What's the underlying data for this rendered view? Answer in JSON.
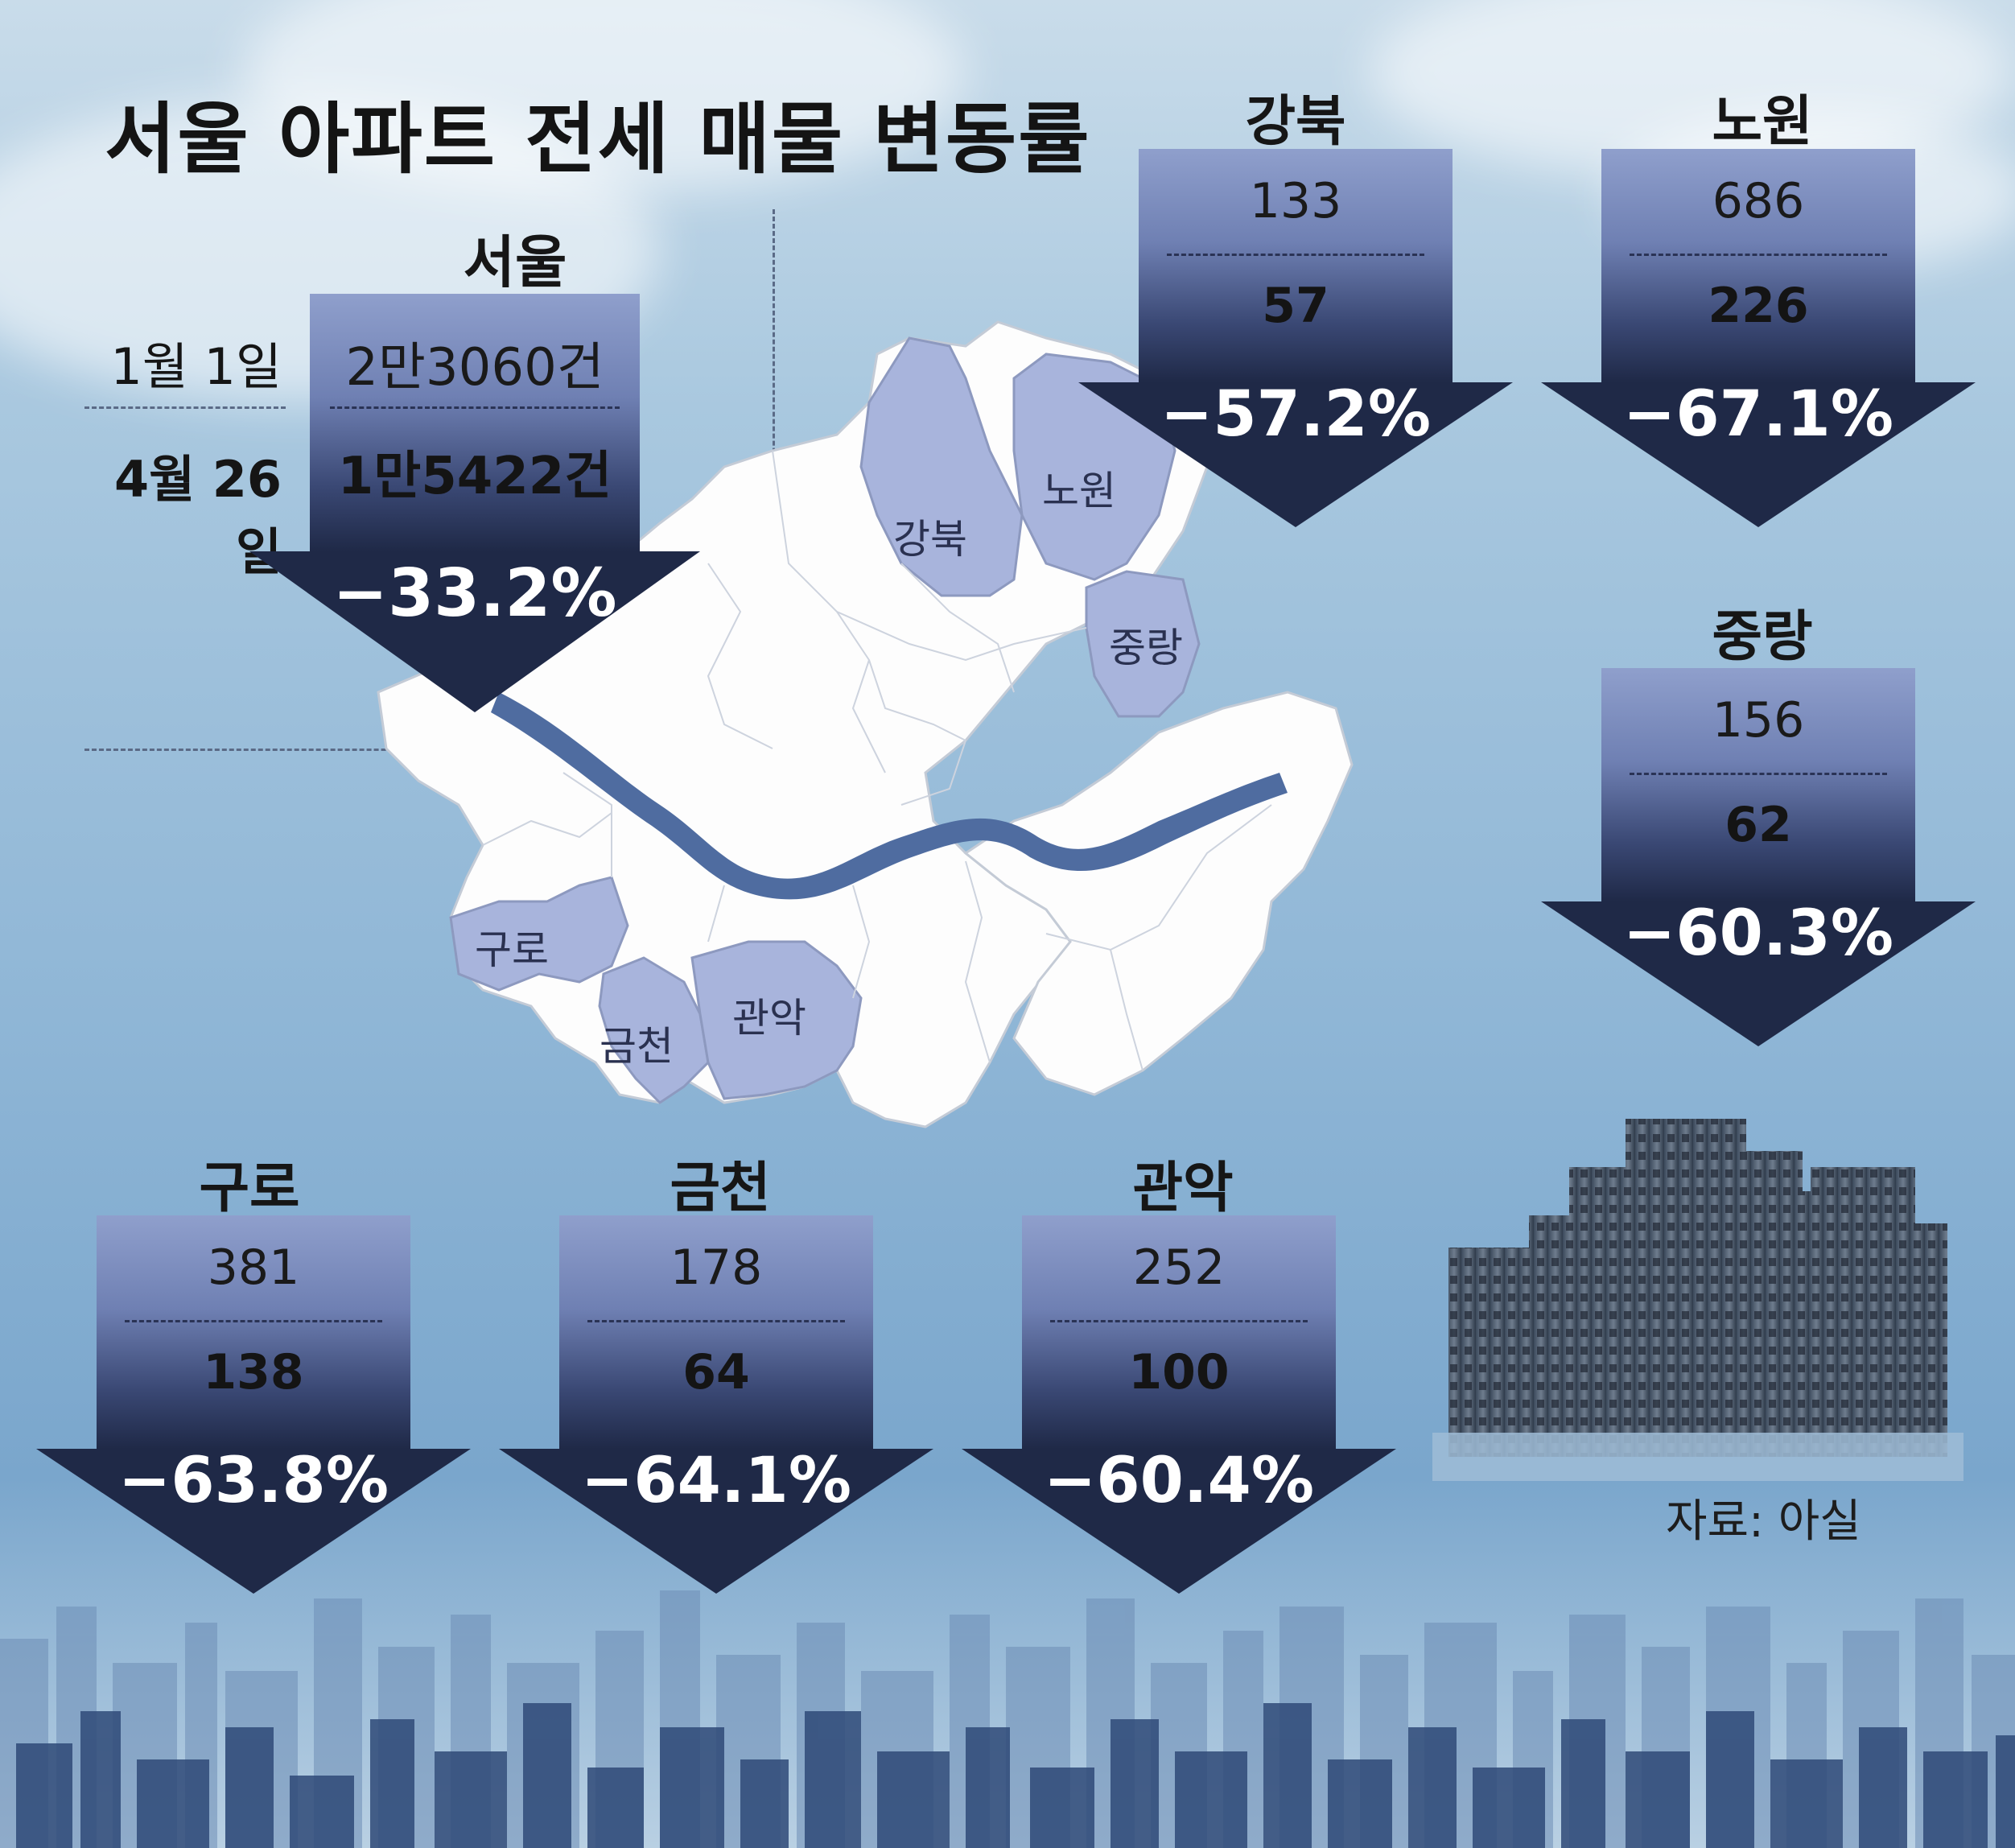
{
  "title": "서울 아파트 전세 매물 변동률",
  "source": "자료: 아실",
  "seoul": {
    "name": "서울",
    "date1": "1월 1일",
    "date2": "4월 26일",
    "value1": "2만3060건",
    "value2": "1만5422건",
    "change": "−33.2%"
  },
  "districts": [
    {
      "name": "강북",
      "value1": "133",
      "value2": "57",
      "change": "−57.2%"
    },
    {
      "name": "노원",
      "value1": "686",
      "value2": "226",
      "change": "−67.1%"
    },
    {
      "name": "중랑",
      "value1": "156",
      "value2": "62",
      "change": "−60.3%"
    },
    {
      "name": "구로",
      "value1": "381",
      "value2": "138",
      "change": "−63.8%"
    },
    {
      "name": "금천",
      "value1": "178",
      "value2": "64",
      "change": "−64.1%"
    },
    {
      "name": "관악",
      "value1": "252",
      "value2": "100",
      "change": "−60.4%"
    }
  ],
  "map_labels": [
    "강북",
    "노원",
    "중랑",
    "구로",
    "금천",
    "관악"
  ],
  "colors": {
    "arrow_top": "#8f9fcc",
    "arrow_bottom": "#1f2947",
    "highlight_district": "#a8b4dc",
    "river": "#4f6ca0"
  }
}
